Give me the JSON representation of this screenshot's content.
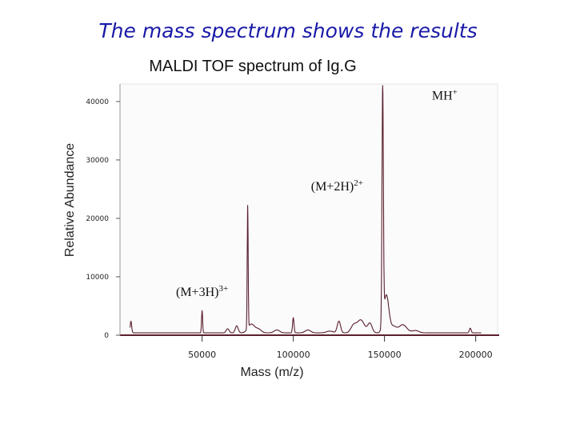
{
  "slide_title": "The mass spectrum shows the results",
  "chart_data": {
    "type": "line",
    "title": "MALDI TOF spectrum of Ig.G",
    "xlabel": "Mass (m/z)",
    "ylabel": "Relative Abundance",
    "xlim": [
      5000,
      212000
    ],
    "ylim": [
      0,
      43000
    ],
    "xticks": [
      50000,
      100000,
      150000,
      200000
    ],
    "xtick_labels": [
      "50000",
      "100000",
      "150000",
      "200000"
    ],
    "yticks": [
      0,
      10000,
      20000,
      30000,
      40000
    ],
    "ytick_labels": [
      "0",
      "10000",
      "20000",
      "30000",
      "40000"
    ],
    "line_color": "#5a1f2e",
    "baseline": 400,
    "peaks": [
      {
        "x": 11000,
        "height": 2000,
        "width": 400
      },
      {
        "x": 50000,
        "height": 3800,
        "width": 300
      },
      {
        "x": 64000,
        "height": 700,
        "width": 800
      },
      {
        "x": 69000,
        "height": 1200,
        "width": 800
      },
      {
        "x": 75000,
        "height": 21000,
        "width": 260
      },
      {
        "x": 77000,
        "height": 1500,
        "width": 1800
      },
      {
        "x": 81000,
        "height": 600,
        "width": 1500
      },
      {
        "x": 91000,
        "height": 500,
        "width": 1500
      },
      {
        "x": 100000,
        "height": 2600,
        "width": 400
      },
      {
        "x": 108000,
        "height": 500,
        "width": 1500
      },
      {
        "x": 120000,
        "height": 300,
        "width": 1800
      },
      {
        "x": 125000,
        "height": 2000,
        "width": 900
      },
      {
        "x": 133000,
        "height": 1200,
        "width": 1500
      },
      {
        "x": 137000,
        "height": 2200,
        "width": 2000
      },
      {
        "x": 142000,
        "height": 1600,
        "width": 1200
      },
      {
        "x": 149000,
        "height": 40000,
        "width": 380
      },
      {
        "x": 151000,
        "height": 6500,
        "width": 1400
      },
      {
        "x": 155000,
        "height": 1000,
        "width": 1500
      },
      {
        "x": 160000,
        "height": 1400,
        "width": 2200
      },
      {
        "x": 167000,
        "height": 400,
        "width": 1800
      },
      {
        "x": 197000,
        "height": 800,
        "width": 500
      }
    ],
    "annotations": [
      {
        "x": 183000,
        "y": 40300,
        "base": "MH",
        "sup": "+"
      },
      {
        "x": 124000,
        "y": 24800,
        "base": "(M+2H)",
        "sup": "2+"
      },
      {
        "x": 50000,
        "y": 6700,
        "base": "(M+3H)",
        "sup": "3+"
      }
    ]
  }
}
